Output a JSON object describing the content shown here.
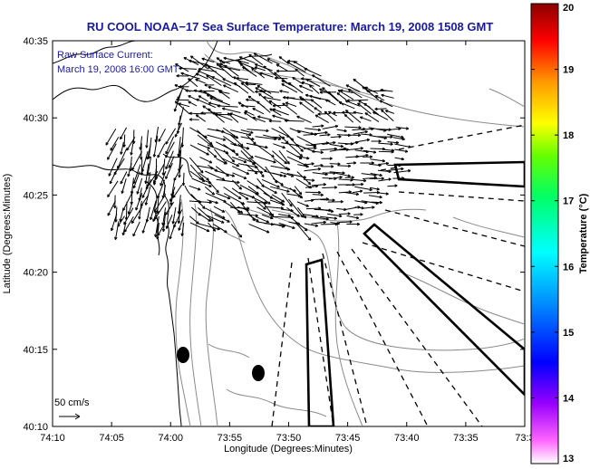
{
  "title": "RU COOL  NOAA−17  Sea Surface Temperature:  March 19, 2008 1508 GMT",
  "overlay": {
    "line1": "Raw Surface Current:",
    "line2": "March 19, 2008 16:00 GMT"
  },
  "scale_label": "50 cm/s",
  "axes": {
    "xlabel": "Longitude (Degrees:Minutes)",
    "ylabel": "Latitude (Degrees:Minutes)",
    "xticks": [
      "74:10",
      "74:05",
      "74:00",
      "73:55",
      "73:50",
      "73:45",
      "73:40",
      "73:35",
      "73:3"
    ],
    "yticks": [
      "40:35",
      "40:30",
      "40:25",
      "40:20",
      "40:15",
      "40:10"
    ]
  },
  "colorbar": {
    "label": "Temperature (°C)",
    "ticks": [
      "20",
      "19",
      "18",
      "17",
      "16",
      "15",
      "14",
      "13"
    ],
    "min": 13,
    "max": 20
  },
  "colors": {
    "title": "#1a1aa0",
    "land_outline": "#000000",
    "contour": "#8a8a8a"
  }
}
